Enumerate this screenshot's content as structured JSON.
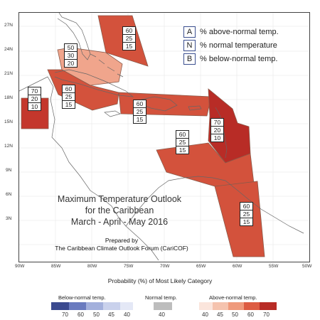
{
  "map": {
    "lat_labels": [
      "27N",
      "24N",
      "21N",
      "18N",
      "15N",
      "12N",
      "9N",
      "6N",
      "3N"
    ],
    "lon_labels": [
      "90W",
      "85W",
      "80W",
      "75W",
      "70W",
      "65W",
      "60W",
      "55W",
      "50W"
    ]
  },
  "key": [
    {
      "letter": "A",
      "text": "% above-normal temp."
    },
    {
      "letter": "N",
      "text": "% normal temperature"
    },
    {
      "letter": "B",
      "text": "% below-normal temp."
    }
  ],
  "title": {
    "line1": "Maximum Temperature Outlook",
    "line2": "for the Caribbean",
    "line3": "March - April - May 2016",
    "credit1": "Prepared by",
    "credit2": "The Caribbean Climate Outlook Forum (CariCOF)"
  },
  "regions": [
    {
      "id": "north-florida-east",
      "values": [
        "60",
        "25",
        "15"
      ],
      "color": "#d3523c"
    },
    {
      "id": "bahamas-north",
      "values": [
        "50",
        "30",
        "20"
      ],
      "color": "#f0a58c"
    },
    {
      "id": "cuba-west-mexico",
      "values": [
        "70",
        "20",
        "10"
      ],
      "color": "#c4372c"
    },
    {
      "id": "cuba-jamaica",
      "values": [
        "60",
        "25",
        "15"
      ],
      "color": "#d3523c"
    },
    {
      "id": "hispaniola-pr",
      "values": [
        "60",
        "25",
        "15"
      ],
      "color": "#d3523c"
    },
    {
      "id": "lesser-antilles-north",
      "values": [
        "70",
        "20",
        "10"
      ],
      "color": "#b82c26"
    },
    {
      "id": "southern-caribbean",
      "values": [
        "60",
        "25",
        "15"
      ],
      "color": "#d3523c"
    },
    {
      "id": "guianas",
      "values": [
        "60",
        "25",
        "15"
      ],
      "color": "#d3523c"
    }
  ],
  "legend": {
    "heading": "Probability (%) of Most Likely Category",
    "below_label": "Below-normal temp.",
    "normal_label": "Normal temp.",
    "above_label": "Above-normal temp.",
    "below_ticks": [
      "70",
      "60",
      "50",
      "45",
      "40"
    ],
    "normal_tick": "40",
    "above_ticks": [
      "40",
      "45",
      "50",
      "60",
      "70"
    ],
    "below_colors": [
      "#3b4a8f",
      "#6a7bbf",
      "#a3b0dc",
      "#c9d1ec",
      "#e4e8f6"
    ],
    "normal_color": "#bdbdbd",
    "above_colors": [
      "#fbe5dc",
      "#f5c3ae",
      "#ef9a7c",
      "#dd5c42",
      "#b82c26"
    ]
  }
}
